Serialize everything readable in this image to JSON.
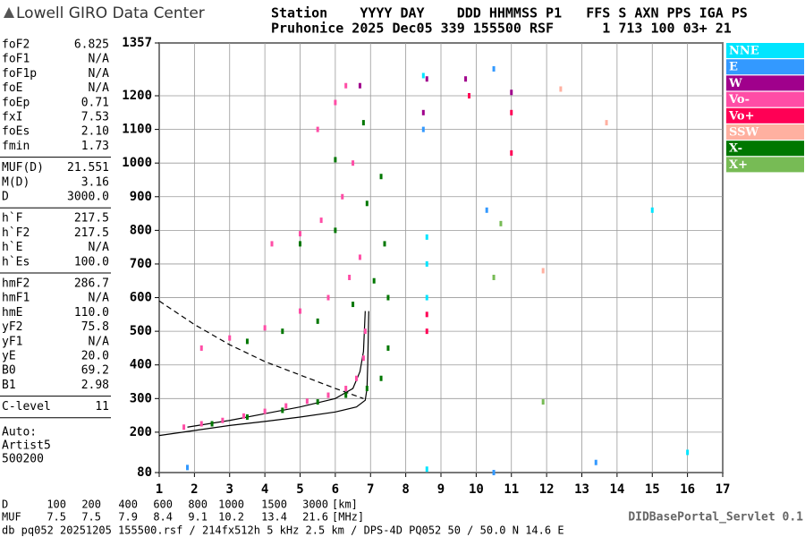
{
  "header": {
    "logo": "Lowell GIRO Data Center",
    "line1": "Station    YYYY DAY    DDD HHMMSS P1   FFS S AXN PPS IGA PS",
    "line2": "Pruhonice 2025 Dec05 339 155500 RSF      1 713 100 03+ 21"
  },
  "params": [
    [
      [
        "foF2",
        "6.825"
      ],
      [
        "foF1",
        "N/A"
      ],
      [
        "foF1p",
        "N/A"
      ],
      [
        "foE",
        "N/A"
      ],
      [
        "foEp",
        "0.71"
      ],
      [
        "fxI",
        "7.53"
      ],
      [
        "foEs",
        "2.10"
      ],
      [
        "fmin",
        "1.73"
      ]
    ],
    [
      [
        "MUF(D)",
        "21.551"
      ],
      [
        "M(D)",
        "3.16"
      ],
      [
        "D",
        "3000.0"
      ]
    ],
    [
      [
        "h`F",
        "217.5"
      ],
      [
        "h`F2",
        "217.5"
      ],
      [
        "h`E",
        "N/A"
      ],
      [
        "h`Es",
        "100.0"
      ]
    ],
    [
      [
        "hmF2",
        "286.7"
      ],
      [
        "hmF1",
        "N/A"
      ],
      [
        "hmE",
        "110.0"
      ],
      [
        "yF2",
        "75.8"
      ],
      [
        "yF1",
        "N/A"
      ],
      [
        "yE",
        "20.0"
      ],
      [
        "B0",
        "69.2"
      ],
      [
        "B1",
        "2.98"
      ]
    ],
    [
      [
        "C-level",
        "11"
      ]
    ]
  ],
  "autoscaler": [
    "Auto:",
    "Artist5",
    "500200"
  ],
  "chart_data": {
    "type": "scatter",
    "xlim": [
      1,
      17
    ],
    "xticks": [
      1,
      2,
      3,
      4,
      5,
      6,
      7,
      8,
      9,
      10,
      11,
      12,
      13,
      14,
      15,
      16,
      17
    ],
    "ylim": [
      80,
      1357
    ],
    "yticks": [
      80,
      200,
      300,
      400,
      500,
      600,
      700,
      800,
      900,
      1000,
      1100,
      1200,
      1357
    ],
    "grid": true,
    "series": [
      {
        "name": "NNE",
        "color": "#00e5ff",
        "x": [
          8.6,
          8.6,
          8.6,
          8.5,
          15,
          16,
          8.6
        ],
        "y": [
          780,
          700,
          600,
          1260,
          860,
          140,
          90
        ]
      },
      {
        "name": "E",
        "color": "#3399ff",
        "x": [
          8.5,
          10.3,
          10.5,
          10.5,
          13.4,
          1.8
        ],
        "y": [
          1100,
          860,
          1280,
          80,
          110,
          95
        ]
      },
      {
        "name": "W",
        "color": "#a0008c",
        "x": [
          8.6,
          9.7,
          11,
          8.5,
          6.7
        ],
        "y": [
          1250,
          1250,
          1210,
          1150,
          1230
        ]
      },
      {
        "name": "Vo-",
        "color": "#ff4da6",
        "x": [
          1.7,
          2.2,
          2.8,
          3.4,
          4,
          4.6,
          5.2,
          5.8,
          6.3,
          6.6,
          6.8,
          6.85,
          2.2,
          3,
          4,
          5,
          5.8,
          6.4,
          6.7,
          4.2,
          5,
          5.6,
          6.2,
          6.5,
          5.5,
          6,
          6.3
        ],
        "y": [
          215,
          225,
          235,
          248,
          262,
          278,
          292,
          310,
          330,
          360,
          420,
          500,
          450,
          480,
          510,
          560,
          600,
          660,
          720,
          760,
          790,
          830,
          900,
          1000,
          1100,
          1180,
          1230
        ]
      },
      {
        "name": "Vo+",
        "color": "#ff0055",
        "x": [
          8.6,
          8.6,
          11,
          11,
          9.8
        ],
        "y": [
          500,
          550,
          1150,
          1030,
          1200
        ]
      },
      {
        "name": "SSW",
        "color": "#ffb0a0",
        "x": [
          11.9,
          12.4,
          13.7
        ],
        "y": [
          680,
          1220,
          1120
        ]
      },
      {
        "name": "X-",
        "color": "#007700",
        "x": [
          2.5,
          3.5,
          4.5,
          5.5,
          6.3,
          6.9,
          7.3,
          7.5,
          7.5,
          3.5,
          4.5,
          5.5,
          6.5,
          7.1,
          7.4,
          5,
          6,
          6.9,
          7.3,
          6,
          6.8
        ],
        "y": [
          225,
          245,
          265,
          290,
          310,
          330,
          360,
          450,
          600,
          470,
          500,
          530,
          580,
          650,
          760,
          760,
          800,
          880,
          960,
          1010,
          1120
        ]
      },
      {
        "name": "X+",
        "color": "#77bb55",
        "x": [
          11.9,
          10.5,
          10.7
        ],
        "y": [
          290,
          660,
          820
        ]
      }
    ],
    "curves": [
      {
        "x": [
          1,
          2,
          3,
          4,
          5,
          6,
          6.6,
          6.85,
          6.9,
          6.92,
          6.95
        ],
        "y": [
          190,
          205,
          220,
          232,
          245,
          260,
          275,
          295,
          330,
          400,
          560
        ],
        "dash": false
      },
      {
        "x": [
          1.8,
          3,
          4,
          5,
          6,
          6.5,
          6.7,
          6.8,
          6.85
        ],
        "y": [
          215,
          235,
          255,
          275,
          300,
          330,
          380,
          440,
          560
        ],
        "dash": false
      },
      {
        "x": [
          1,
          2,
          3,
          4,
          5,
          6,
          6.8
        ],
        "y": [
          590,
          520,
          460,
          410,
          370,
          330,
          300
        ],
        "dash": true
      }
    ]
  },
  "muf_table": {
    "d_label": "D",
    "d": [
      "100",
      "200",
      "400",
      "600",
      "800",
      "1000",
      "1500",
      "3000"
    ],
    "d_unit": "[km]",
    "muf_label": "MUF",
    "muf": [
      "7.5",
      "7.5",
      "7.9",
      "8.4",
      "9.1",
      "10.2",
      "13.4",
      "21.6"
    ],
    "muf_unit": "[MHz]"
  },
  "servlet": "DIDBasePortal_Servlet 0.1",
  "footer": "db pq052 20251205 155500.rsf / 214fx512h 5 kHz 2.5 km / DPS-4D PQ052 50 / 50.0 N 14.6 E"
}
